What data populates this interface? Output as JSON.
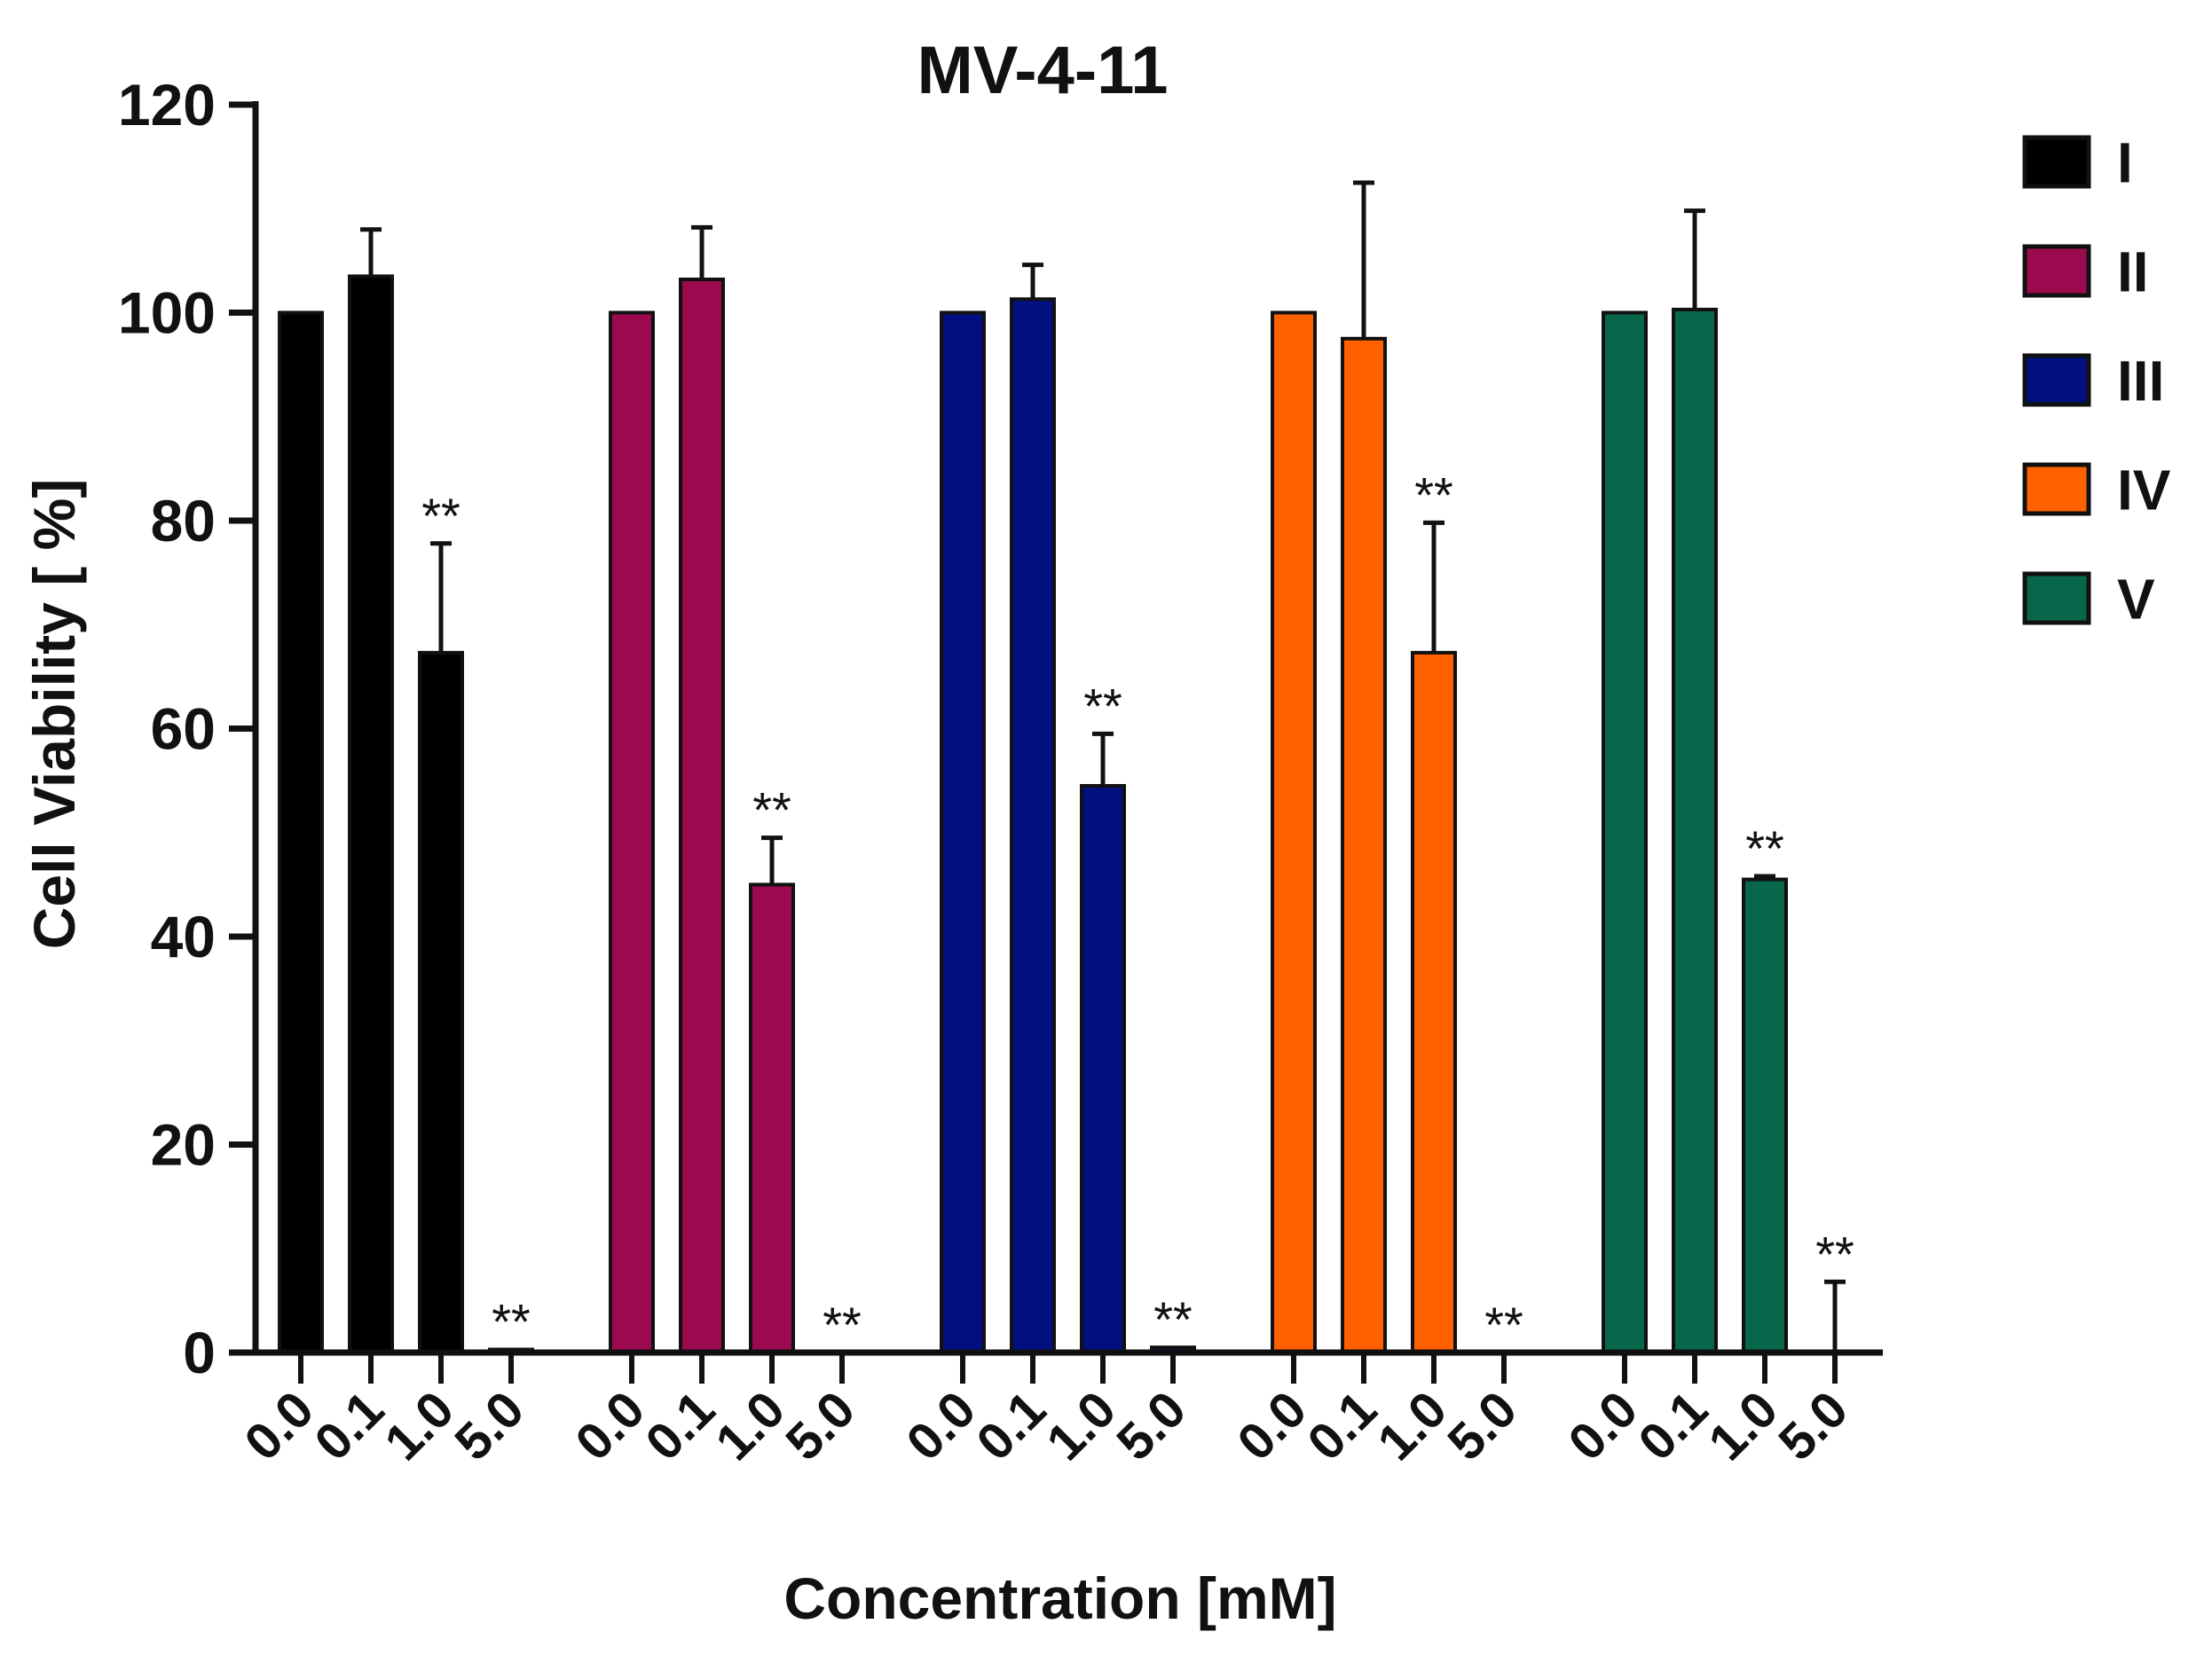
{
  "chart_data": {
    "type": "bar",
    "title": "MV-4-11",
    "xlabel": "Concentration [mM]",
    "ylabel": "Cell Viability [ %]",
    "ylim": [
      0,
      120
    ],
    "yticks": [
      "0",
      "20",
      "40",
      "60",
      "80",
      "100",
      "120"
    ],
    "categories": [
      "0.0",
      "0.1",
      "1.0",
      "5.0"
    ],
    "grid": false,
    "legend_position": "top-right",
    "series": [
      {
        "name": "I",
        "color": "#000000",
        "values": [
          100,
          103.5,
          67.3,
          0.3
        ],
        "errors": [
          0,
          4.5,
          10.5,
          0
        ],
        "significance": [
          "",
          "",
          "**",
          "**"
        ]
      },
      {
        "name": "II",
        "color": "#9b0a4e",
        "values": [
          100,
          103.2,
          45.0,
          0
        ],
        "errors": [
          0,
          5.0,
          4.5,
          0
        ],
        "significance": [
          "",
          "",
          "**",
          "**"
        ]
      },
      {
        "name": "III",
        "color": "#020f80",
        "values": [
          100,
          101.3,
          54.5,
          0.5
        ],
        "errors": [
          0,
          3.3,
          5.0,
          0
        ],
        "significance": [
          "",
          "",
          "**",
          "**"
        ]
      },
      {
        "name": "IV",
        "color": "#ff6000",
        "values": [
          100,
          97.5,
          67.3,
          0
        ],
        "errors": [
          0,
          15.0,
          12.5,
          0
        ],
        "significance": [
          "",
          "",
          "**",
          "**"
        ]
      },
      {
        "name": "V",
        "color": "#08674a",
        "values": [
          100,
          100.3,
          45.5,
          0
        ],
        "errors": [
          0,
          9.5,
          0.3,
          6.8
        ],
        "significance": [
          "",
          "",
          "**",
          "**"
        ]
      }
    ]
  }
}
